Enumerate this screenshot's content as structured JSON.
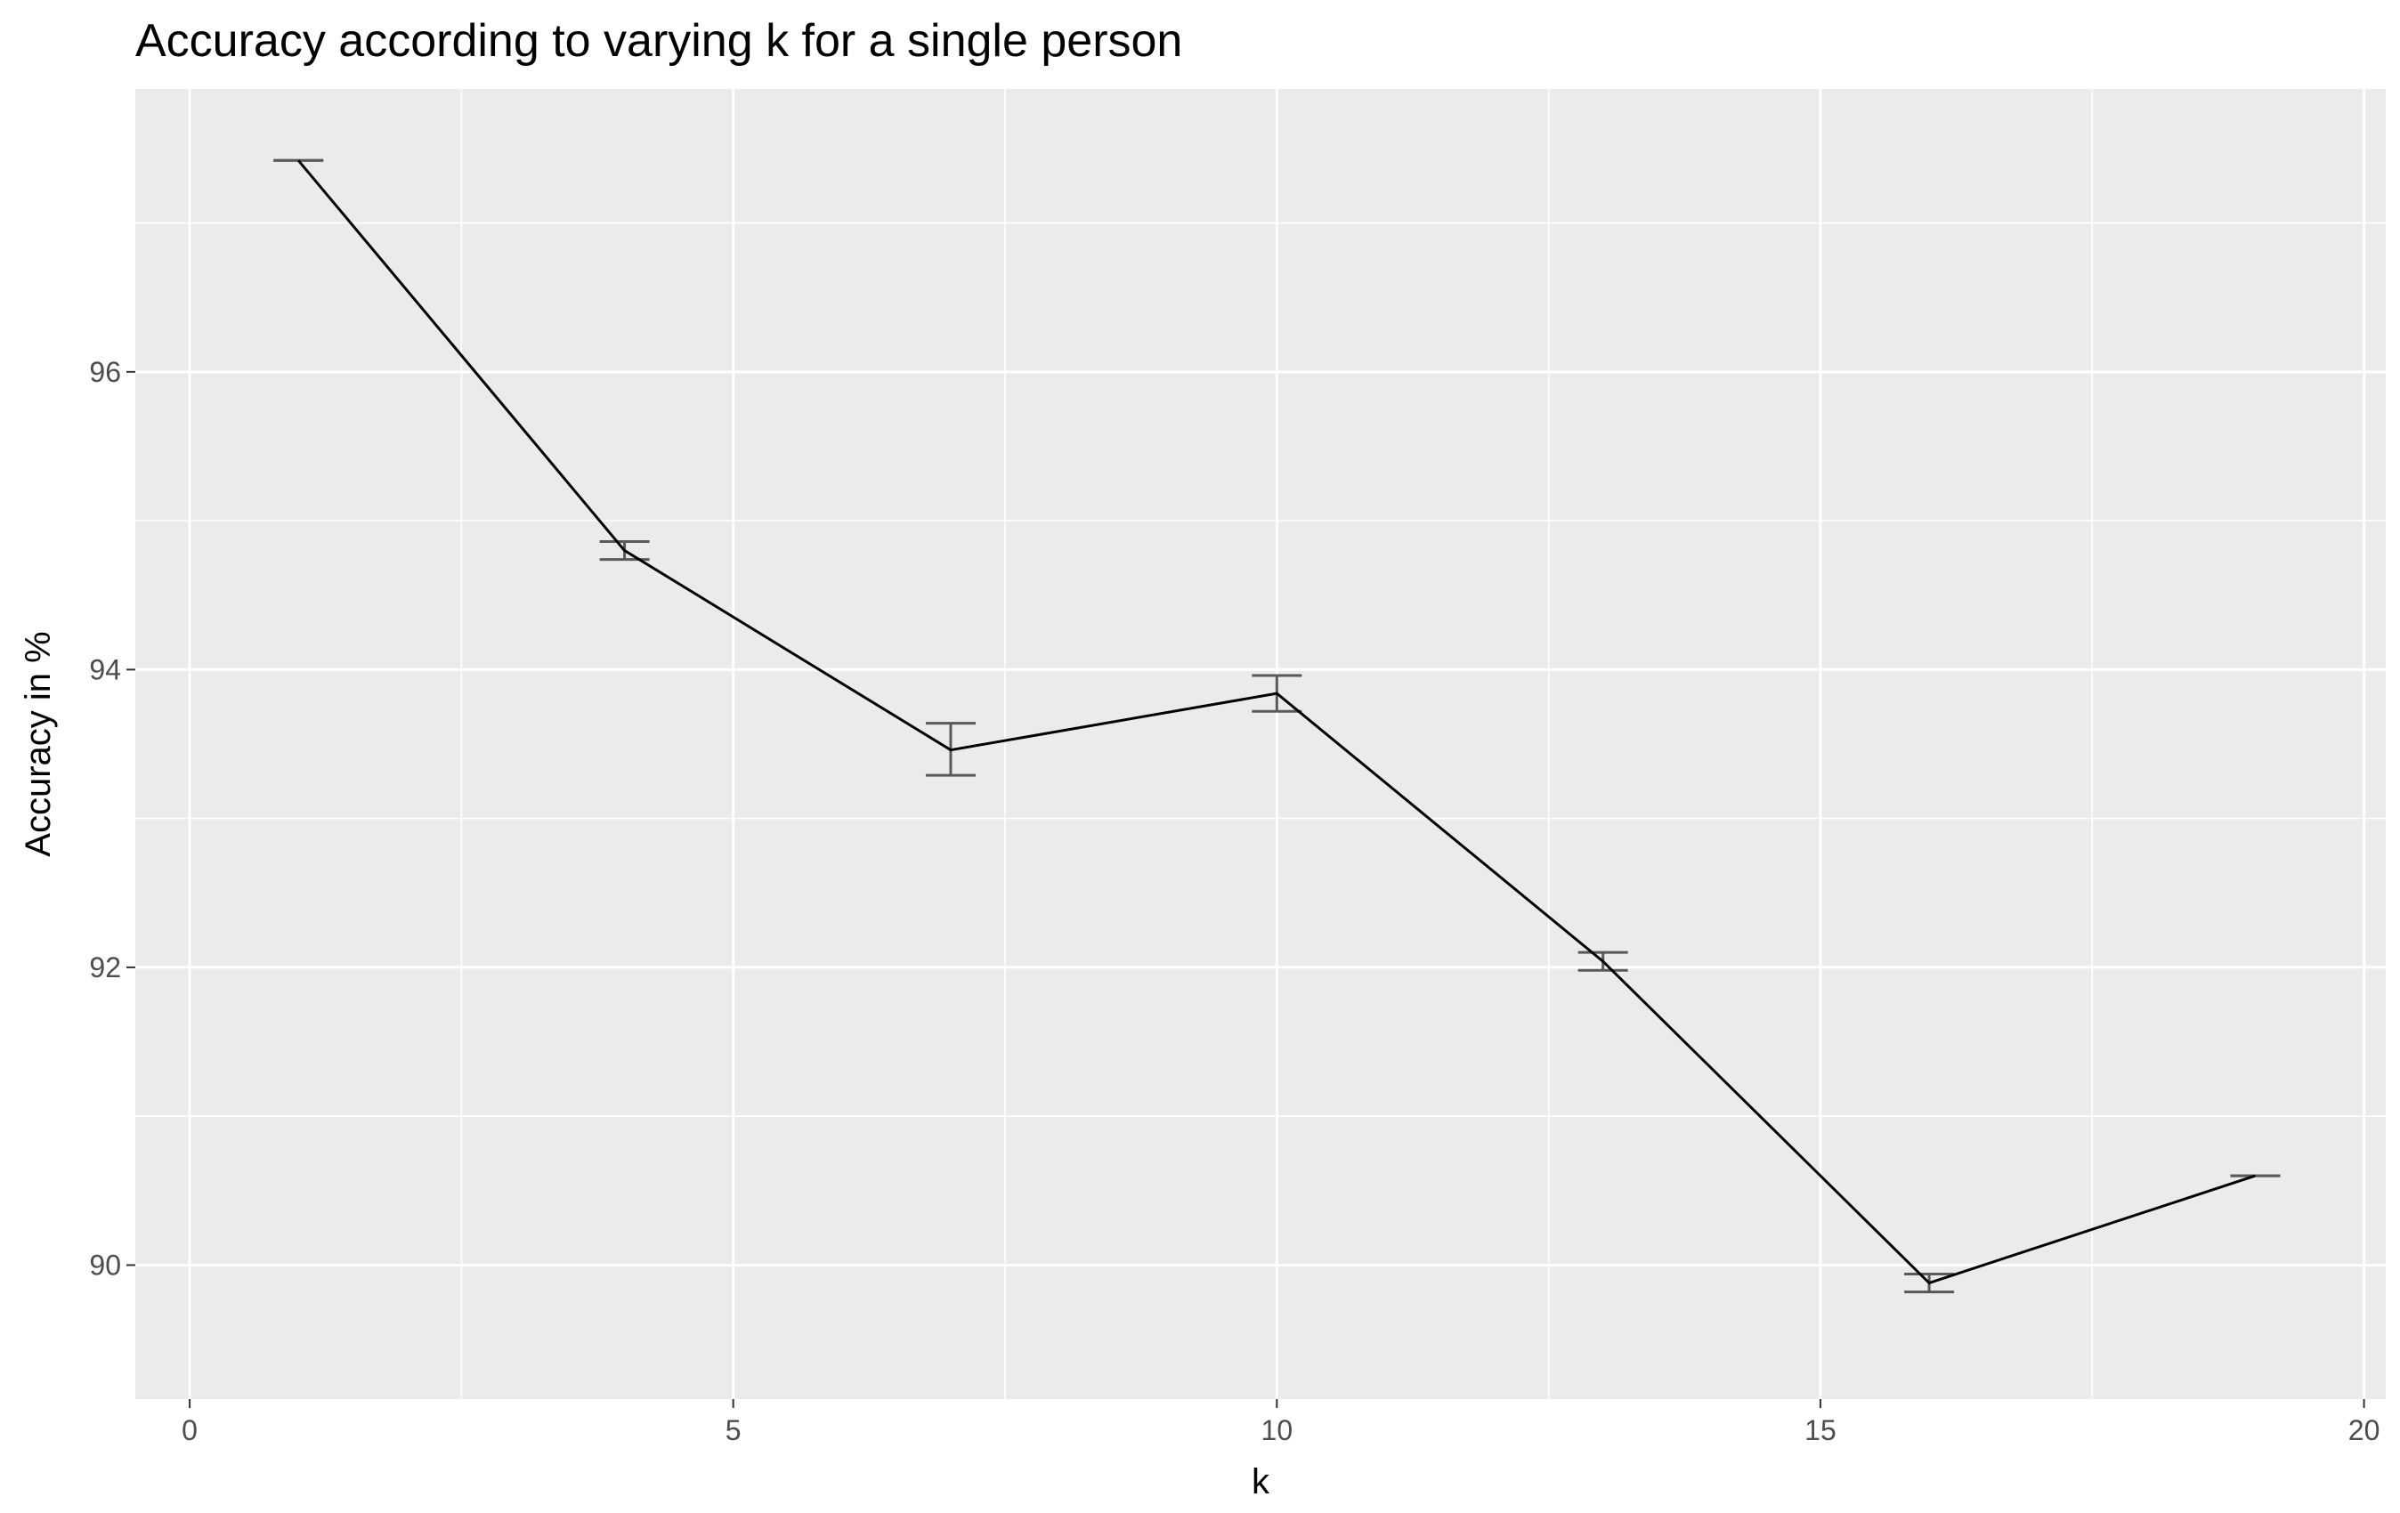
{
  "chart_data": {
    "type": "line",
    "title": "Accuracy according to varying k for a single person",
    "xlabel": "k",
    "ylabel": "Accuracy in %",
    "xlim": [
      -0.5,
      20.2
    ],
    "ylim": [
      89.1,
      97.9
    ],
    "x_ticks": [
      0,
      5,
      10,
      15,
      20
    ],
    "y_ticks": [
      90,
      92,
      94,
      96
    ],
    "x_minor": [
      2.5,
      7.5,
      12.5,
      17.5
    ],
    "y_minor": [
      91,
      93,
      95,
      97
    ],
    "grid": true,
    "legend": "none",
    "series": [
      {
        "x": [
          1,
          4,
          7,
          10,
          13,
          16,
          19
        ],
        "y": [
          97.42,
          94.8,
          93.46,
          93.84,
          92.04,
          89.88,
          90.6
        ],
        "ymin": [
          97.42,
          94.74,
          93.29,
          93.72,
          91.98,
          89.82,
          90.6
        ],
        "ymax": [
          97.42,
          94.86,
          93.64,
          93.96,
          92.1,
          89.94,
          90.6
        ]
      }
    ],
    "colors": {
      "panel": "#ebebeb",
      "grid": "#ffffff",
      "line": "#000000",
      "errorbar": "#595959",
      "tick_text": "#4d4d4d"
    }
  }
}
